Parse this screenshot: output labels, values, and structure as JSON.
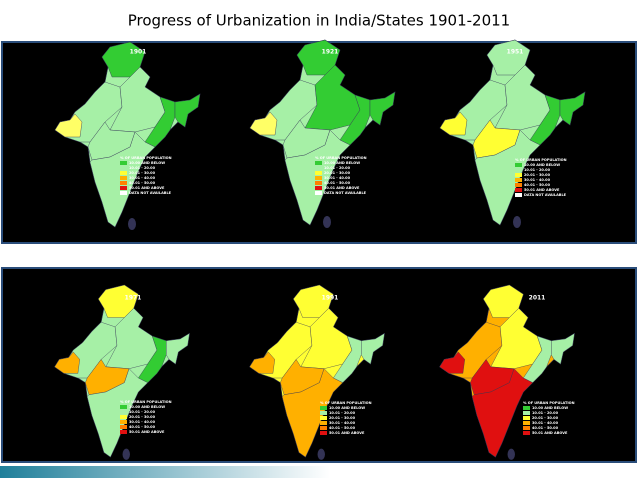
{
  "title": "Progress of Urbanization in India/States 1901-2011",
  "legend_title": "% OF URBAN POPULATION",
  "legend_colors": [
    "#33cc33",
    "#a6f0a6",
    "#ffff33",
    "#ffb000",
    "#ff7f00",
    "#e01010",
    "#ffffff"
  ],
  "maps": [
    {
      "year": "1901",
      "legend": [
        "10.00 AND BELOW",
        "10.01 - 20.00",
        "20.01 - 30.00",
        "30.01 - 40.00",
        "40.01 - 50.00",
        "50.01 AND ABOVE",
        "DATA NOT AVAILABLE"
      ],
      "region_colors": [
        "#33cc33",
        "#a6f0a6",
        "#a6f0a6",
        "#33cc33",
        "#a6f0a6",
        "#a6f0a6",
        "#33cc33",
        "#ffff66"
      ]
    },
    {
      "year": "1921",
      "legend": [
        "10.00 AND BELOW",
        "10.01 - 20.00",
        "20.01 - 30.00",
        "30.01 - 40.00",
        "40.01 - 50.00",
        "50.01 AND ABOVE",
        "DATA NOT AVAILABLE"
      ],
      "region_colors": [
        "#33cc33",
        "#a6f0a6",
        "#33cc33",
        "#33cc33",
        "#a6f0a6",
        "#a6f0a6",
        "#33cc33",
        "#ffff66"
      ]
    },
    {
      "year": "1951",
      "legend": [
        "10.00 AND BELOW",
        "10.01 - 20.00",
        "20.01 - 30.00",
        "30.01 - 40.00",
        "40.01 - 50.00",
        "50.01 AND ABOVE",
        "DATA NOT AVAILABLE"
      ],
      "region_colors": [
        "#a6f0a6",
        "#a6f0a6",
        "#a6f0a6",
        "#33cc33",
        "#ffff33",
        "#a6f0a6",
        "#33cc33",
        "#ffff33"
      ]
    },
    {
      "year": "1971",
      "legend": [
        "10.00 AND BELOW",
        "10.01 - 20.00",
        "20.01 - 30.00",
        "30.01 - 40.00",
        "40.01 - 50.00",
        "50.01 AND ABOVE"
      ],
      "region_colors": [
        "#ffff33",
        "#a6f0a6",
        "#a6f0a6",
        "#33cc33",
        "#ffb000",
        "#a6f0a6",
        "#a6f0a6",
        "#ffb000"
      ]
    },
    {
      "year": "1991",
      "legend": [
        "10.00 AND BELOW",
        "10.01 - 20.00",
        "20.01 - 30.00",
        "30.01 - 40.00",
        "40.01 - 50.00",
        "50.01 AND ABOVE"
      ],
      "region_colors": [
        "#ffff33",
        "#ffff33",
        "#ffff33",
        "#a6f0a6",
        "#ffb000",
        "#ffb000",
        "#a6f0a6",
        "#ffb000"
      ]
    },
    {
      "year": "2011",
      "legend": [
        "10.00 AND BELOW",
        "10.01 - 20.00",
        "20.01 - 30.00",
        "30.01 - 40.00",
        "40.01 - 50.00",
        "50.01 AND ABOVE"
      ],
      "region_colors": [
        "#ffff33",
        "#ffb000",
        "#ffff33",
        "#a6f0a6",
        "#e01010",
        "#e01010",
        "#a6f0a6",
        "#e01010"
      ]
    }
  ]
}
